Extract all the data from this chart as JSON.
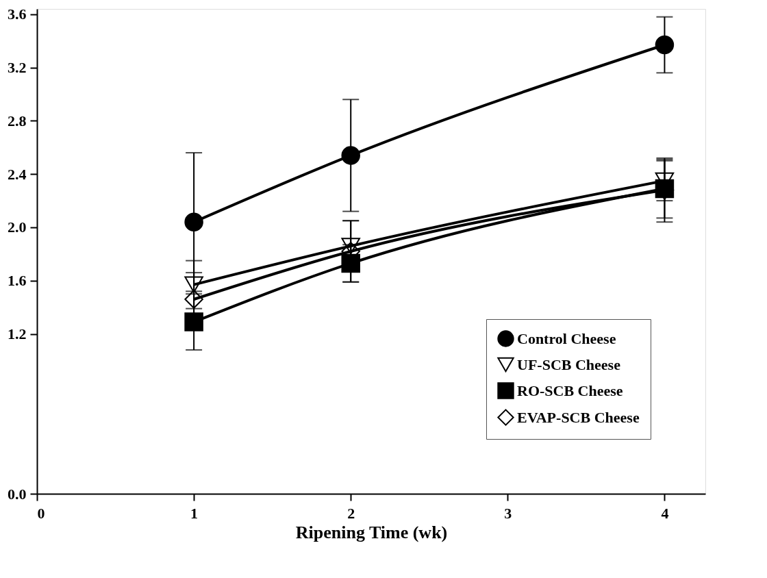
{
  "chart_data": {
    "type": "line",
    "xlabel": "Ripening Time (wk)",
    "x": [
      1,
      2,
      4
    ],
    "xlim": [
      0,
      4.26
    ],
    "xticks": [
      0,
      1,
      2,
      3,
      4
    ],
    "ylim": [
      0,
      3.64
    ],
    "yticks": [
      {
        "value": 0,
        "label": "0.0"
      },
      1.2,
      1.6,
      {
        "value": 2.0,
        "label": "2.0"
      },
      2.4,
      2.8,
      3.2,
      3.6
    ],
    "series": [
      {
        "name": "Control Cheese",
        "color": "#000000",
        "marker": "circle",
        "values": [
          2.04,
          2.54,
          3.37
        ],
        "errors": [
          0.52,
          0.42,
          0.21
        ]
      },
      {
        "name": "UF-SCB Cheese",
        "color": "#000000",
        "marker": "triangle",
        "values": [
          1.57,
          1.86,
          2.35
        ],
        "errors": [
          0.18,
          0.19,
          0.15
        ]
      },
      {
        "name": "RO-SCB Cheese",
        "color": "#000000",
        "marker": "square",
        "values": [
          1.29,
          1.73,
          2.29
        ],
        "errors": [
          0.21,
          0.14,
          0.22
        ]
      },
      {
        "name": "EVAP-SCB Cheese",
        "color": "#000000",
        "marker": "diamond",
        "values": [
          1.46,
          1.82,
          2.28
        ],
        "errors": [
          0.2,
          0.23,
          0.24
        ]
      }
    ],
    "legend": "bottom right",
    "grid": false,
    "line_style": "solid"
  }
}
